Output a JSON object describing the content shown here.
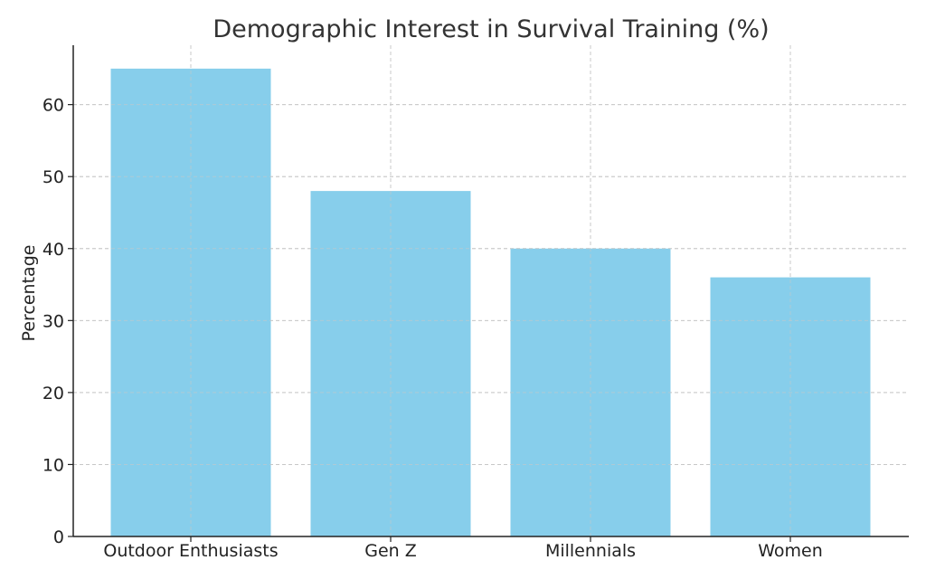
{
  "chart_data": {
    "type": "bar",
    "title": "Demographic Interest in Survival Training (%)",
    "xlabel": "",
    "ylabel": "Percentage",
    "categories": [
      "Outdoor Enthusiasts",
      "Gen Z",
      "Millennials",
      "Women"
    ],
    "values": [
      65,
      48,
      40,
      36
    ],
    "ylim": [
      0,
      68.25
    ],
    "yticks": [
      0,
      10,
      20,
      30,
      40,
      50,
      60
    ],
    "grid": true,
    "bar_color": "#87CEEB"
  }
}
